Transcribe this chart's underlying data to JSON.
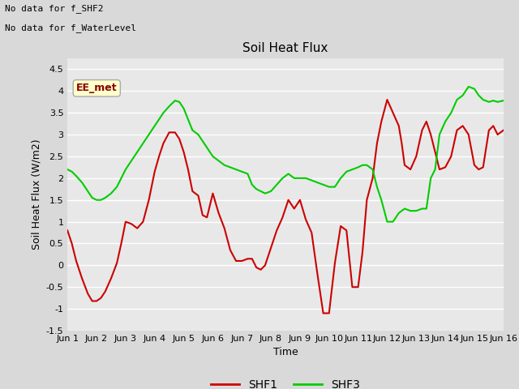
{
  "title": "Soil Heat Flux",
  "xlabel": "Time",
  "ylabel": "Soil Heat Flux (W/m2)",
  "ylim": [
    -1.5,
    4.75
  ],
  "xlim": [
    0,
    15
  ],
  "xtick_labels": [
    "Jun 1",
    "Jun 2",
    "Jun 3",
    "Jun 4",
    "Jun 5",
    "Jun 6",
    "Jun 7",
    "Jun 8",
    "Jun 9",
    "Jun 10",
    "Jun 11",
    "Jun 12",
    "Jun 13",
    "Jun 14",
    "Jun 15",
    "Jun 16"
  ],
  "ytick_values": [
    -1.5,
    -1.0,
    -0.5,
    0.0,
    0.5,
    1.0,
    1.5,
    2.0,
    2.5,
    3.0,
    3.5,
    4.0,
    4.5
  ],
  "text_annotations": [
    "No data for f_SHF2",
    "No data for f_WaterLevel"
  ],
  "ee_met_label": "EE_met",
  "ee_met_box_color": "#ffffcc",
  "ee_met_text_color": "#8b0000",
  "bg_color": "#d9d9d9",
  "plot_bg_color": "#e8e8e8",
  "shf1_color": "#cc0000",
  "shf3_color": "#00cc00",
  "legend_labels": [
    "SHF1",
    "SHF3"
  ],
  "shf1_x": [
    0,
    0.15,
    0.3,
    0.5,
    0.7,
    0.85,
    1.0,
    1.15,
    1.3,
    1.5,
    1.7,
    1.85,
    2.0,
    2.2,
    2.4,
    2.6,
    2.8,
    3.0,
    3.15,
    3.3,
    3.5,
    3.7,
    3.85,
    4.0,
    4.15,
    4.3,
    4.5,
    4.65,
    4.8,
    5.0,
    5.2,
    5.4,
    5.6,
    5.8,
    6.0,
    6.2,
    6.35,
    6.5,
    6.65,
    6.8,
    7.0,
    7.2,
    7.4,
    7.6,
    7.8,
    8.0,
    8.2,
    8.4,
    8.6,
    8.8,
    9.0,
    9.2,
    9.4,
    9.6,
    9.8,
    10.0,
    10.15,
    10.3,
    10.5,
    10.65,
    10.8,
    11.0,
    11.2,
    11.4,
    11.5,
    11.6,
    11.8,
    12.0,
    12.2,
    12.35,
    12.5,
    12.65,
    12.8,
    13.0,
    13.2,
    13.4,
    13.6,
    13.8,
    14.0,
    14.15,
    14.3,
    14.5,
    14.65,
    14.8,
    15.0
  ],
  "shf1_y": [
    0.8,
    0.5,
    0.1,
    -0.3,
    -0.65,
    -0.82,
    -0.82,
    -0.75,
    -0.6,
    -0.3,
    0.05,
    0.5,
    1.0,
    0.95,
    0.85,
    1.0,
    1.5,
    2.15,
    2.5,
    2.8,
    3.05,
    3.05,
    2.9,
    2.6,
    2.2,
    1.7,
    1.6,
    1.15,
    1.1,
    1.65,
    1.2,
    0.85,
    0.35,
    0.1,
    0.1,
    0.15,
    0.15,
    -0.05,
    -0.1,
    0.0,
    0.4,
    0.8,
    1.1,
    1.5,
    1.3,
    1.5,
    1.05,
    0.75,
    -0.2,
    -1.1,
    -1.1,
    0.05,
    0.9,
    0.8,
    -0.5,
    -0.5,
    0.3,
    1.5,
    2.0,
    2.8,
    3.3,
    3.8,
    3.5,
    3.2,
    2.8,
    2.3,
    2.2,
    2.5,
    3.1,
    3.3,
    3.0,
    2.6,
    2.2,
    2.25,
    2.5,
    3.1,
    3.2,
    3.0,
    2.3,
    2.2,
    2.25,
    3.1,
    3.2,
    3.0,
    3.1
  ],
  "shf3_x": [
    0,
    0.15,
    0.3,
    0.5,
    0.7,
    0.85,
    1.0,
    1.15,
    1.3,
    1.5,
    1.7,
    1.85,
    2.0,
    2.2,
    2.4,
    2.6,
    2.8,
    3.0,
    3.15,
    3.3,
    3.5,
    3.7,
    3.85,
    4.0,
    4.15,
    4.3,
    4.5,
    4.65,
    4.8,
    5.0,
    5.2,
    5.4,
    5.6,
    5.8,
    6.0,
    6.2,
    6.35,
    6.5,
    6.65,
    6.8,
    7.0,
    7.2,
    7.4,
    7.6,
    7.8,
    8.0,
    8.2,
    8.4,
    8.6,
    8.8,
    9.0,
    9.2,
    9.4,
    9.6,
    9.8,
    10.0,
    10.15,
    10.3,
    10.5,
    10.65,
    10.8,
    11.0,
    11.2,
    11.4,
    11.5,
    11.6,
    11.8,
    12.0,
    12.2,
    12.35,
    12.5,
    12.65,
    12.8,
    13.0,
    13.2,
    13.4,
    13.6,
    13.8,
    14.0,
    14.15,
    14.3,
    14.5,
    14.65,
    14.8,
    15.0
  ],
  "shf3_y": [
    2.2,
    2.15,
    2.05,
    1.9,
    1.7,
    1.55,
    1.5,
    1.5,
    1.55,
    1.65,
    1.8,
    2.0,
    2.2,
    2.4,
    2.6,
    2.8,
    3.0,
    3.2,
    3.35,
    3.5,
    3.65,
    3.78,
    3.75,
    3.6,
    3.35,
    3.1,
    3.0,
    2.85,
    2.7,
    2.5,
    2.4,
    2.3,
    2.25,
    2.2,
    2.15,
    2.1,
    1.85,
    1.75,
    1.7,
    1.65,
    1.7,
    1.85,
    2.0,
    2.1,
    2.0,
    2.0,
    2.0,
    1.95,
    1.9,
    1.85,
    1.8,
    1.8,
    2.0,
    2.15,
    2.2,
    2.25,
    2.3,
    2.3,
    2.2,
    1.8,
    1.5,
    1.0,
    1.0,
    1.2,
    1.25,
    1.3,
    1.25,
    1.25,
    1.3,
    1.3,
    2.0,
    2.2,
    3.0,
    3.3,
    3.5,
    3.8,
    3.9,
    4.1,
    4.05,
    3.9,
    3.8,
    3.75,
    3.78,
    3.75,
    3.78
  ]
}
